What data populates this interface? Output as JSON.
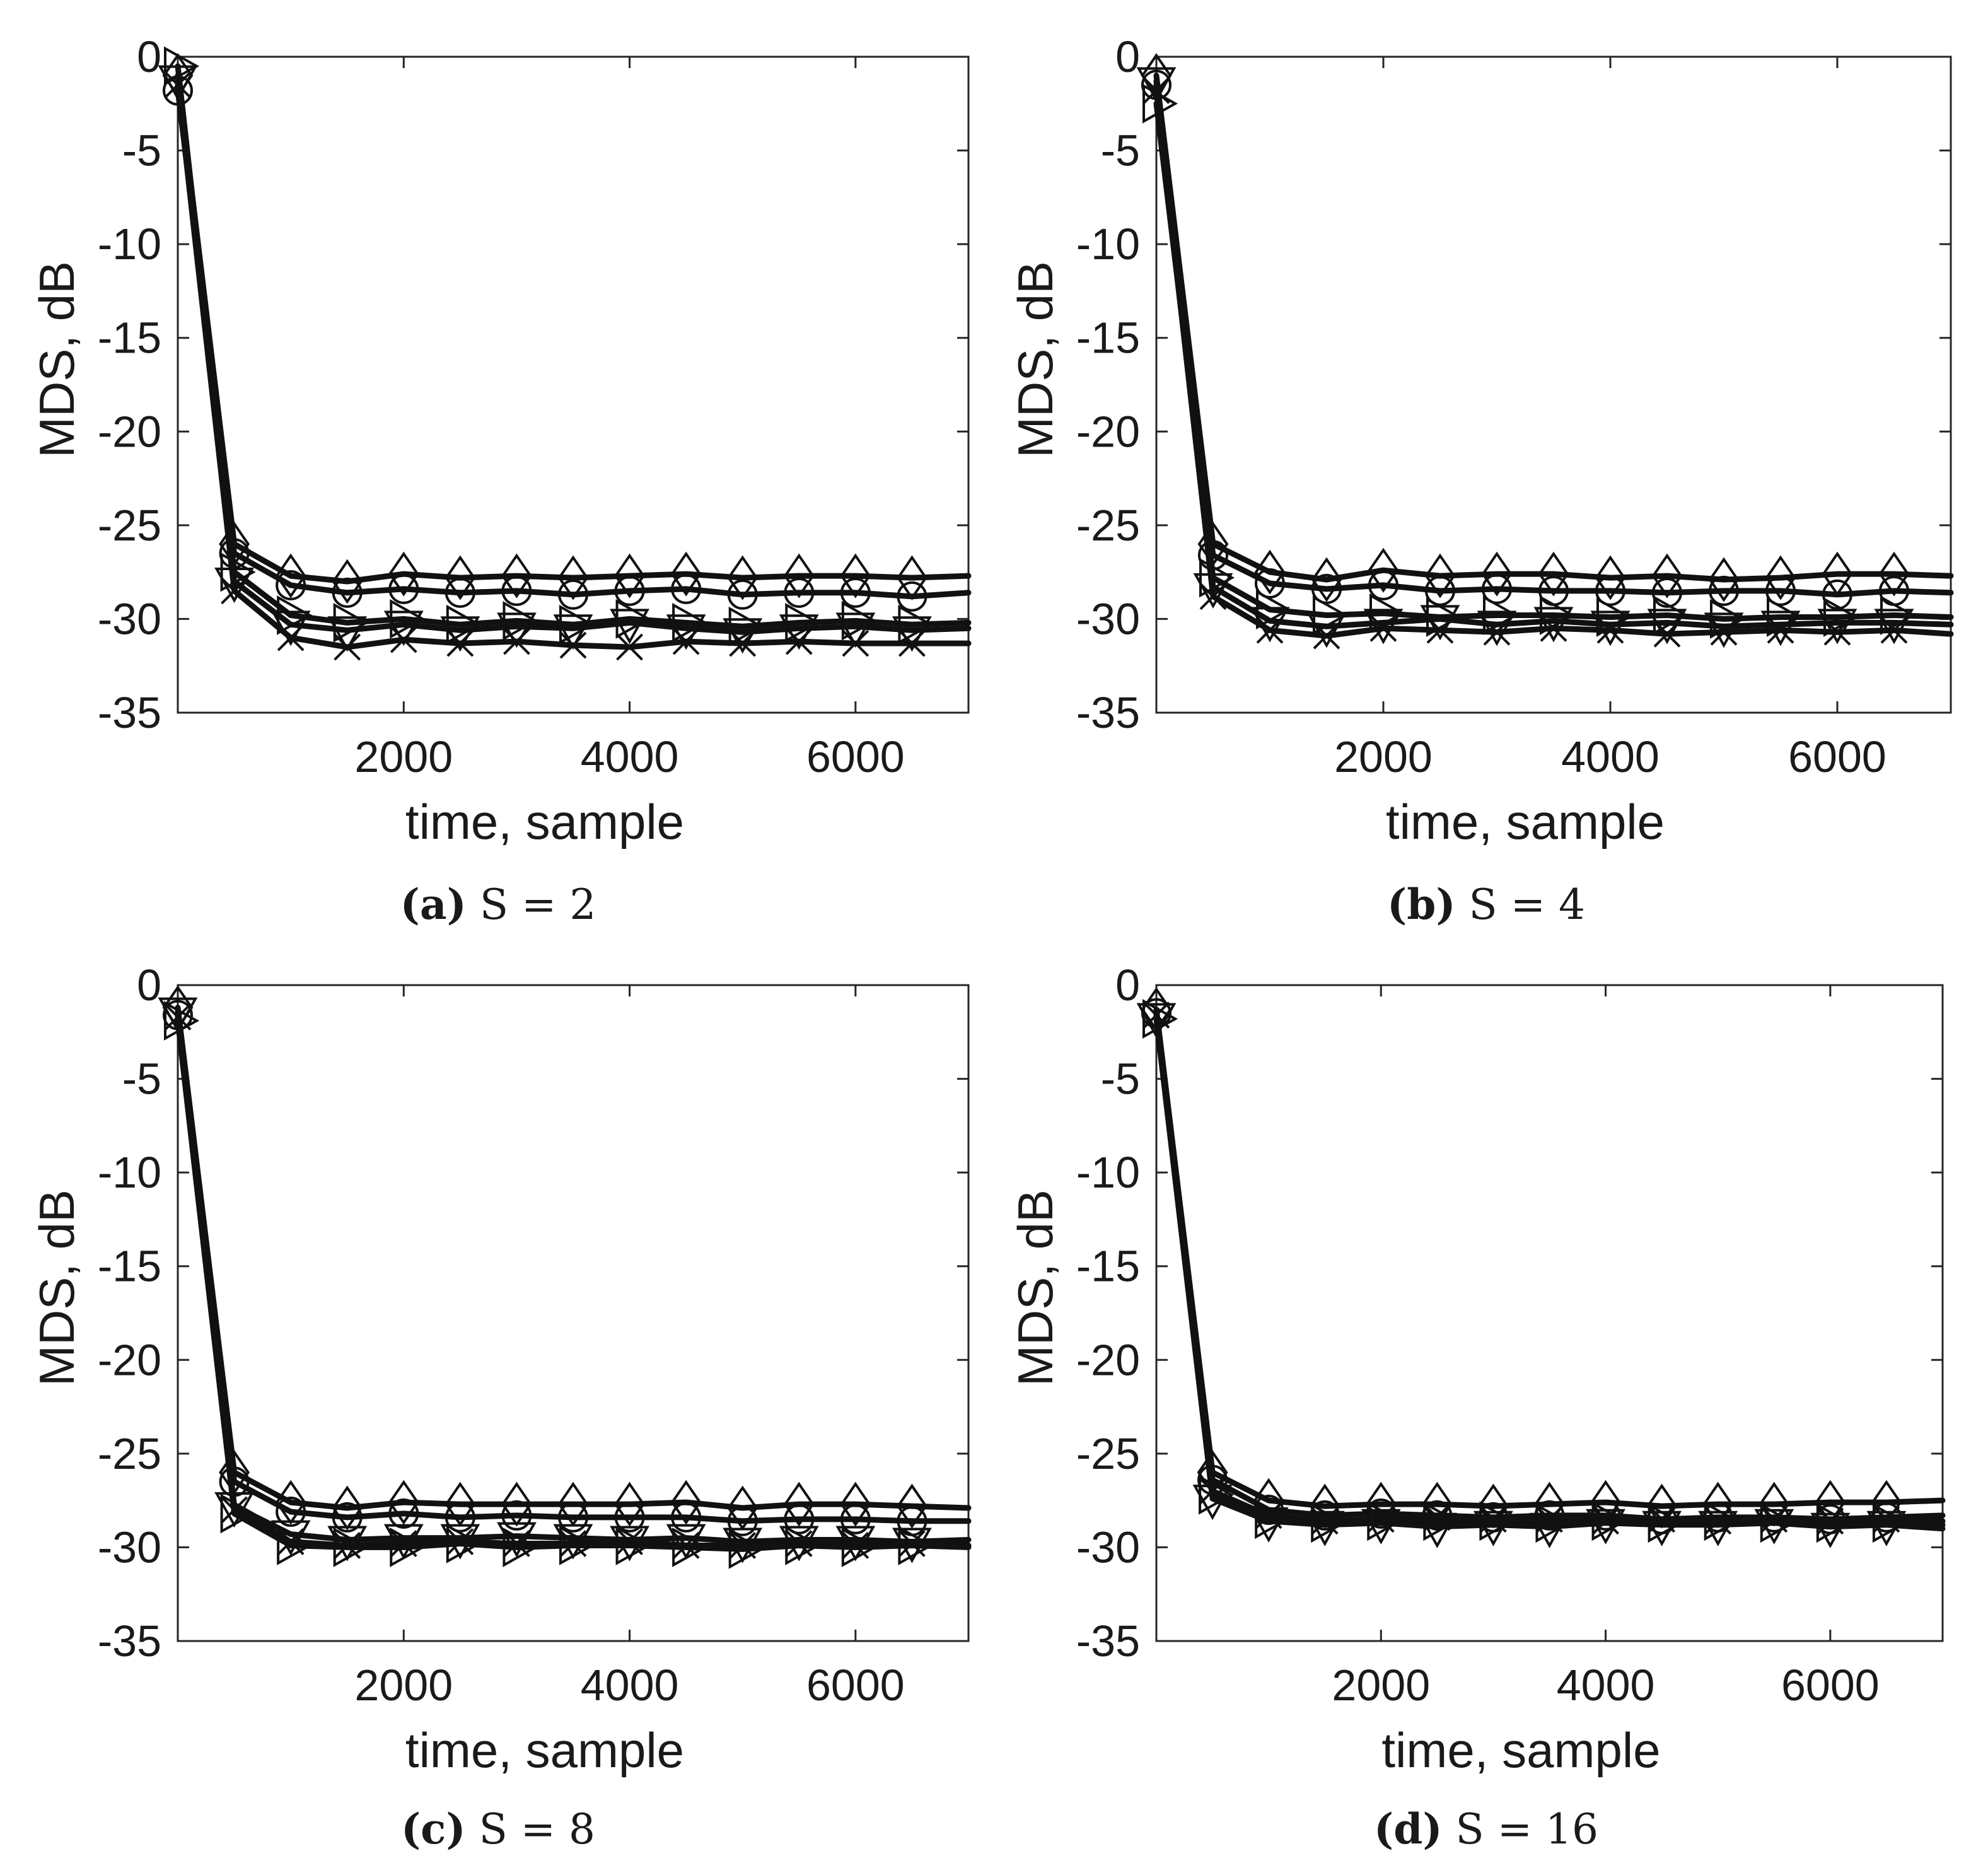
{
  "chart_data": [
    {
      "type": "line",
      "panel_tag": "(a)",
      "panel_title": "S = 2",
      "xlabel": "time, sample",
      "ylabel": "MDS, dB",
      "xlim": [
        0,
        7000
      ],
      "ylim": [
        -35,
        0
      ],
      "xticks": [
        2000,
        4000,
        6000
      ],
      "yticks": [
        0,
        -5,
        -10,
        -15,
        -20,
        -25,
        -30,
        -35
      ],
      "x": [
        0,
        500,
        1000,
        1500,
        2000,
        2500,
        3000,
        3500,
        4000,
        4500,
        5000,
        5500,
        6000,
        6500,
        7000
      ],
      "series": [
        {
          "name": "diamond",
          "marker": "diamond",
          "values": [
            -1.0,
            -26.0,
            -27.7,
            -28.0,
            -27.6,
            -27.8,
            -27.7,
            -27.8,
            -27.7,
            -27.6,
            -27.8,
            -27.7,
            -27.7,
            -27.8,
            -27.7
          ]
        },
        {
          "name": "circle",
          "marker": "circle",
          "values": [
            -1.8,
            -26.5,
            -28.2,
            -28.6,
            -28.4,
            -28.6,
            -28.5,
            -28.7,
            -28.5,
            -28.4,
            -28.7,
            -28.6,
            -28.6,
            -28.8,
            -28.6
          ]
        },
        {
          "name": "triangle-right",
          "marker": "triangle-right",
          "values": [
            -0.5,
            -27.5,
            -29.8,
            -30.2,
            -30.0,
            -30.3,
            -30.1,
            -30.3,
            -30.0,
            -30.2,
            -30.4,
            -30.2,
            -30.1,
            -30.3,
            -30.2
          ]
        },
        {
          "name": "triangle-down",
          "marker": "triangle-down",
          "values": [
            -1.2,
            -28.0,
            -30.3,
            -30.6,
            -30.3,
            -30.6,
            -30.4,
            -30.5,
            -30.2,
            -30.5,
            -30.7,
            -30.5,
            -30.4,
            -30.6,
            -30.5
          ]
        },
        {
          "name": "cross",
          "marker": "cross",
          "values": [
            -1.5,
            -28.5,
            -31.0,
            -31.5,
            -31.1,
            -31.3,
            -31.2,
            -31.4,
            -31.5,
            -31.2,
            -31.3,
            -31.2,
            -31.3,
            -31.3,
            -31.3
          ]
        }
      ]
    },
    {
      "type": "line",
      "panel_tag": "(b)",
      "panel_title": "S = 4",
      "xlabel": "time, sample",
      "ylabel": "MDS, dB",
      "xlim": [
        0,
        7000
      ],
      "ylim": [
        -35,
        0
      ],
      "xticks": [
        2000,
        4000,
        6000
      ],
      "yticks": [
        0,
        -5,
        -10,
        -15,
        -20,
        -25,
        -30,
        -35
      ],
      "x": [
        0,
        500,
        1000,
        1500,
        2000,
        2500,
        3000,
        3500,
        4000,
        4500,
        5000,
        5500,
        6000,
        6500,
        7000
      ],
      "series": [
        {
          "name": "diamond",
          "marker": "diamond",
          "values": [
            -1.0,
            -26.0,
            -27.5,
            -27.9,
            -27.4,
            -27.7,
            -27.6,
            -27.6,
            -27.8,
            -27.7,
            -27.9,
            -27.8,
            -27.6,
            -27.6,
            -27.7
          ]
        },
        {
          "name": "circle",
          "marker": "circle",
          "values": [
            -1.5,
            -26.6,
            -28.1,
            -28.4,
            -28.2,
            -28.5,
            -28.4,
            -28.5,
            -28.5,
            -28.6,
            -28.5,
            -28.5,
            -28.7,
            -28.5,
            -28.6
          ]
        },
        {
          "name": "triangle-right",
          "marker": "triangle-right",
          "values": [
            -2.5,
            -27.8,
            -29.5,
            -29.8,
            -29.7,
            -29.9,
            -29.8,
            -29.8,
            -29.9,
            -29.8,
            -30.0,
            -29.9,
            -29.9,
            -29.8,
            -29.9
          ]
        },
        {
          "name": "triangle-down",
          "marker": "triangle-down",
          "values": [
            -1.3,
            -28.3,
            -30.1,
            -30.4,
            -30.2,
            -30.0,
            -30.3,
            -30.1,
            -30.3,
            -30.2,
            -30.4,
            -30.3,
            -30.2,
            -30.2,
            -30.3
          ]
        },
        {
          "name": "cross",
          "marker": "cross",
          "values": [
            -1.8,
            -28.8,
            -30.6,
            -30.9,
            -30.5,
            -30.6,
            -30.7,
            -30.5,
            -30.6,
            -30.8,
            -30.7,
            -30.6,
            -30.7,
            -30.6,
            -30.8
          ]
        }
      ]
    },
    {
      "type": "line",
      "panel_tag": "(c)",
      "panel_title": "S = 8",
      "xlabel": "time, sample",
      "ylabel": "MDS, dB",
      "xlim": [
        0,
        7000
      ],
      "ylim": [
        -35,
        0
      ],
      "xticks": [
        2000,
        4000,
        6000
      ],
      "yticks": [
        0,
        -5,
        -10,
        -15,
        -20,
        -25,
        -30,
        -35
      ],
      "x": [
        0,
        500,
        1000,
        1500,
        2000,
        2500,
        3000,
        3500,
        4000,
        4500,
        5000,
        5500,
        6000,
        6500,
        7000
      ],
      "series": [
        {
          "name": "diamond",
          "marker": "diamond",
          "values": [
            -1.2,
            -26.0,
            -27.6,
            -27.9,
            -27.6,
            -27.7,
            -27.7,
            -27.7,
            -27.7,
            -27.6,
            -27.9,
            -27.7,
            -27.7,
            -27.8,
            -27.9
          ]
        },
        {
          "name": "circle",
          "marker": "circle",
          "values": [
            -1.6,
            -26.5,
            -28.1,
            -28.4,
            -28.2,
            -28.4,
            -28.3,
            -28.4,
            -28.4,
            -28.4,
            -28.6,
            -28.5,
            -28.5,
            -28.6,
            -28.6
          ]
        },
        {
          "name": "triangle-down",
          "marker": "triangle-down",
          "values": [
            -1.4,
            -27.8,
            -29.3,
            -29.6,
            -29.5,
            -29.5,
            -29.4,
            -29.5,
            -29.6,
            -29.5,
            -29.7,
            -29.6,
            -29.6,
            -29.7,
            -29.6
          ]
        },
        {
          "name": "cross",
          "marker": "cross",
          "values": [
            -1.7,
            -28.0,
            -29.7,
            -29.9,
            -29.8,
            -29.7,
            -29.8,
            -29.8,
            -29.7,
            -29.9,
            -29.9,
            -29.8,
            -29.9,
            -29.8,
            -29.9
          ]
        },
        {
          "name": "triangle-right",
          "marker": "triangle-right",
          "values": [
            -1.9,
            -28.2,
            -29.9,
            -30.0,
            -30.0,
            -29.8,
            -30.0,
            -29.9,
            -29.9,
            -30.0,
            -30.1,
            -29.9,
            -30.0,
            -29.9,
            -30.0
          ]
        }
      ]
    },
    {
      "type": "line",
      "panel_tag": "(d)",
      "panel_title": "S = 16",
      "xlabel": "time, sample",
      "ylabel": "MDS, dB",
      "xlim": [
        0,
        7000
      ],
      "ylim": [
        -35,
        0
      ],
      "xticks": [
        2000,
        4000,
        6000
      ],
      "yticks": [
        0,
        -5,
        -10,
        -15,
        -20,
        -25,
        -30,
        -35
      ],
      "x": [
        0,
        500,
        1000,
        1500,
        2000,
        2500,
        3000,
        3500,
        4000,
        4500,
        5000,
        5500,
        6000,
        6500,
        7000
      ],
      "series": [
        {
          "name": "diamond",
          "marker": "diamond",
          "values": [
            -1.3,
            -26.0,
            -27.5,
            -27.8,
            -27.7,
            -27.7,
            -27.8,
            -27.7,
            -27.6,
            -27.8,
            -27.7,
            -27.7,
            -27.6,
            -27.6,
            -27.5
          ]
        },
        {
          "name": "circle",
          "marker": "circle",
          "values": [
            -1.5,
            -26.4,
            -28.0,
            -28.3,
            -28.2,
            -28.3,
            -28.4,
            -28.3,
            -28.3,
            -28.5,
            -28.4,
            -28.4,
            -28.5,
            -28.4,
            -28.3
          ]
        },
        {
          "name": "cross",
          "marker": "cross",
          "values": [
            -1.6,
            -27.0,
            -28.3,
            -28.6,
            -28.5,
            -28.4,
            -28.5,
            -28.5,
            -28.6,
            -28.5,
            -28.6,
            -28.5,
            -28.6,
            -28.5,
            -28.6
          ]
        },
        {
          "name": "triangle-right",
          "marker": "triangle-right",
          "values": [
            -1.8,
            -27.2,
            -28.5,
            -28.7,
            -28.6,
            -28.6,
            -28.6,
            -28.7,
            -28.6,
            -28.7,
            -28.6,
            -28.7,
            -28.7,
            -28.7,
            -28.8
          ]
        },
        {
          "name": "triangle-down",
          "marker": "triangle-down",
          "values": [
            -1.7,
            -27.4,
            -28.6,
            -28.8,
            -28.7,
            -28.9,
            -28.8,
            -28.9,
            -28.7,
            -28.8,
            -28.8,
            -28.7,
            -28.9,
            -28.8,
            -29.0
          ]
        }
      ]
    }
  ]
}
